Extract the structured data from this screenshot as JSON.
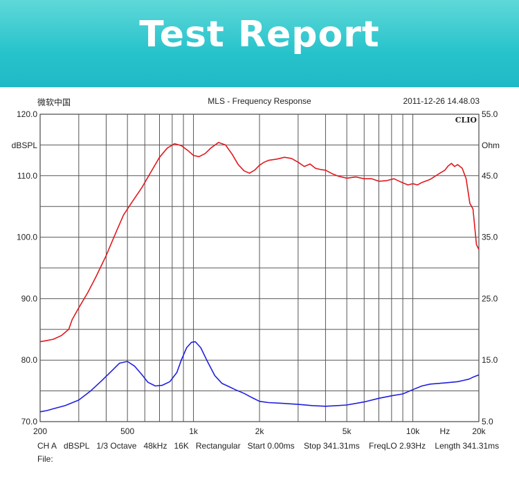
{
  "banner": {
    "title": "Test Report"
  },
  "header": {
    "left": "微软中国",
    "center": "MLS - Frequency Response",
    "right": "2011-12-26 14.48.03"
  },
  "footer": {
    "settings": [
      "CH A",
      "dBSPL",
      "1/3 Octave",
      "48kHz",
      "16K",
      "Rectangular",
      "Start 0.00ms",
      "Stop 341.31ms",
      "FreqLO 2.93Hz",
      "Length 341.31ms"
    ],
    "file_label": "File:"
  },
  "colors": {
    "spl": "#e0181e",
    "impedance": "#1e1ee0",
    "grid": "#555555",
    "banner": "#27c3cc"
  },
  "chart_data": {
    "type": "line",
    "brand": "CLIO",
    "x_scale": "log",
    "xlim": [
      200,
      20000
    ],
    "ylim": [
      70,
      120
    ],
    "y2lim": [
      5,
      55
    ],
    "ylabel": "dBSPL",
    "y2label": "Ohm",
    "y_ticks": [
      "120.0",
      "110.0",
      "100.0",
      "90.0",
      "80.0",
      "70.0"
    ],
    "y2_ticks": [
      "55.0",
      "45.0",
      "35.0",
      "25.0",
      "15.0",
      "5.0"
    ],
    "x_ticks": [
      {
        "value": 200,
        "label": "200"
      },
      {
        "value": 500,
        "label": "500"
      },
      {
        "value": 1000,
        "label": "1k"
      },
      {
        "value": 2000,
        "label": "2k"
      },
      {
        "value": 5000,
        "label": "5k"
      },
      {
        "value": 10000,
        "label": "10k"
      },
      {
        "value": 14000,
        "label": "Hz"
      },
      {
        "value": 20000,
        "label": "20k"
      }
    ],
    "grid": true,
    "series": [
      {
        "axis": "left",
        "color": "#e0181e",
        "x": [
          200,
          215,
          230,
          250,
          270,
          280,
          300,
          330,
          360,
          400,
          440,
          480,
          520,
          580,
          640,
          700,
          760,
          820,
          880,
          950,
          1000,
          1060,
          1130,
          1200,
          1300,
          1400,
          1500,
          1600,
          1700,
          1800,
          1900,
          2000,
          2100,
          2200,
          2400,
          2600,
          2800,
          3000,
          3200,
          3400,
          3600,
          3800,
          4000,
          4300,
          4600,
          5000,
          5500,
          6000,
          6500,
          7000,
          7600,
          8200,
          8800,
          9500,
          10000,
          10500,
          11000,
          12000,
          13000,
          14000,
          14500,
          15000,
          15500,
          16000,
          16800,
          17500,
          18200,
          18800,
          19500,
          20000
        ],
        "values": [
          83,
          83.2,
          83.4,
          84,
          85,
          86.6,
          88.5,
          91,
          93.6,
          97,
          100.5,
          103.6,
          105.5,
          108,
          110.6,
          113,
          114.5,
          115.2,
          114.9,
          114,
          113.3,
          113.1,
          113.6,
          114.5,
          115.4,
          115,
          113.5,
          111.8,
          110.8,
          110.4,
          110.9,
          111.7,
          112.2,
          112.5,
          112.7,
          113,
          112.8,
          112.2,
          111.5,
          111.9,
          111.2,
          111,
          110.9,
          110.3,
          109.9,
          109.6,
          109.8,
          109.5,
          109.5,
          109.1,
          109.2,
          109.5,
          109,
          108.5,
          108.7,
          108.5,
          108.9,
          109.4,
          110.2,
          110.9,
          111.6,
          112,
          111.5,
          111.8,
          111.2,
          109.5,
          105.5,
          104.6,
          98.8,
          98
        ]
      },
      {
        "axis": "right",
        "color": "#1e1ee0",
        "x": [
          200,
          215,
          230,
          260,
          300,
          340,
          380,
          420,
          460,
          500,
          540,
          580,
          620,
          670,
          720,
          780,
          840,
          880,
          930,
          980,
          1020,
          1080,
          1150,
          1250,
          1350,
          1450,
          1550,
          1700,
          1850,
          2000,
          2200,
          2500,
          3000,
          3500,
          4000,
          4500,
          5000,
          6000,
          7000,
          8000,
          9000,
          10000,
          11000,
          12000,
          13000,
          14000,
          15000,
          16000,
          17000,
          18000,
          19000,
          20000
        ],
        "values": [
          6.6,
          6.8,
          7.1,
          7.6,
          8.5,
          10,
          11.6,
          13.1,
          14.5,
          14.8,
          14,
          12.7,
          11.4,
          10.8,
          10.9,
          11.5,
          13,
          15,
          17,
          17.9,
          18,
          17,
          15,
          12.5,
          11.2,
          10.7,
          10.2,
          9.6,
          8.9,
          8.3,
          8.1,
          8,
          7.8,
          7.6,
          7.5,
          7.6,
          7.7,
          8.2,
          8.8,
          9.2,
          9.5,
          10.2,
          10.8,
          11.1,
          11.2,
          11.3,
          11.4,
          11.5,
          11.7,
          11.9,
          12.3,
          12.6
        ]
      }
    ]
  }
}
